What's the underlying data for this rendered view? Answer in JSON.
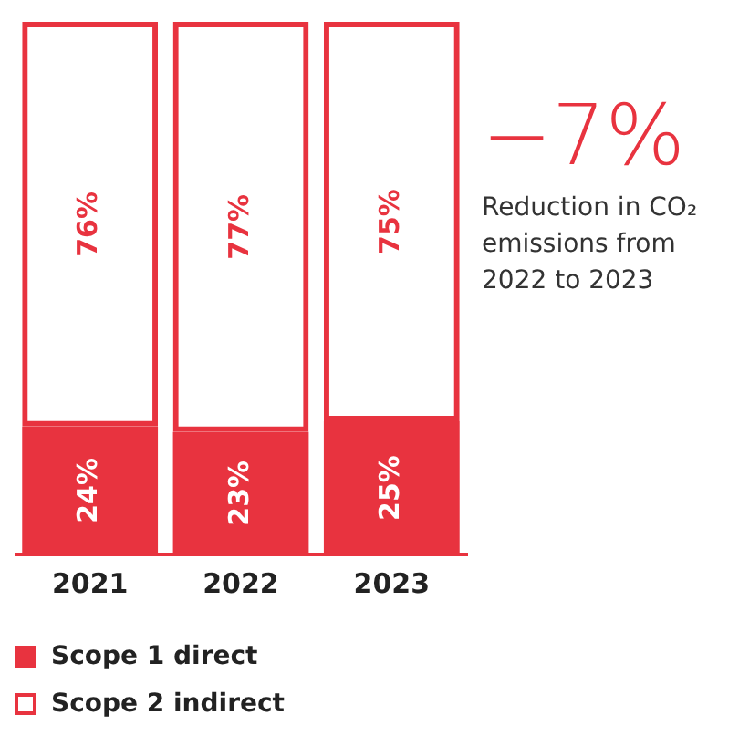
{
  "chart_data": {
    "type": "bar",
    "categories": [
      "2021",
      "2022",
      "2023"
    ],
    "stacked": true,
    "ylim": [
      0,
      100
    ],
    "tick_labels": "x",
    "data_labels": true,
    "legend": "bottom",
    "annotations": [
      "−7%",
      "Reduction in CO₂ emissions from 2022 to 2023"
    ],
    "series": [
      {
        "name": "Scope 1 direct",
        "color": "#e8333f",
        "values": [
          24,
          23,
          25
        ],
        "value_labels": [
          "24%",
          "23%",
          "25%"
        ]
      },
      {
        "name": "Scope 2 indirect",
        "color": "#e8333f",
        "values": [
          76,
          77,
          75
        ],
        "value_labels": [
          "76%",
          "77%",
          "75%"
        ]
      }
    ]
  }
}
